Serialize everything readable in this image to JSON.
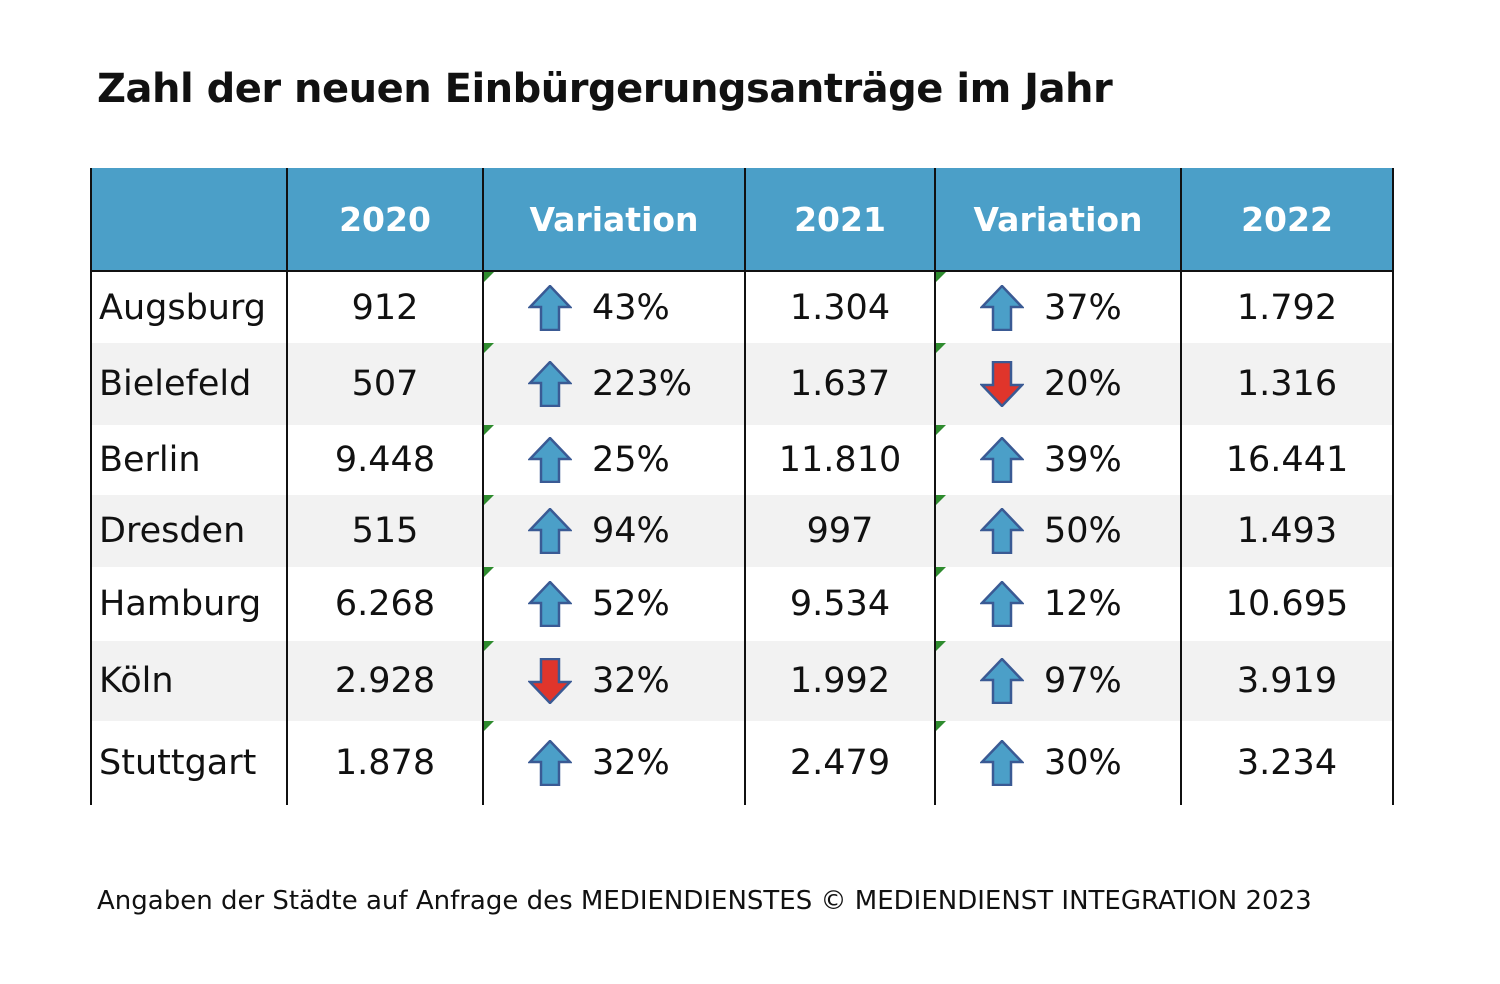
{
  "title": "Zahl der neuen Einbürgerungsanträge im Jahr",
  "footer": "Angaben der Städte auf Anfrage des MEDIENDIENSTES © MEDIENDIENST INTEGRATION 2023",
  "colors": {
    "header_bg": "#4b9fc8",
    "arrow_up": "#4b9fc8",
    "arrow_down": "#e0352b",
    "row_alt": "#f2f2f2"
  },
  "chart_data": {
    "type": "table",
    "title": "Zahl der neuen Einbürgerungsanträge im Jahr",
    "columns": [
      "",
      "2020",
      "Variation",
      "2021",
      "Variation",
      "2022"
    ],
    "rows": [
      {
        "city": "Augsburg",
        "y2020": "912",
        "var1": "43%",
        "dir1": "up",
        "y2021": "1.304",
        "var2": "37%",
        "dir2": "up",
        "y2022": "1.792"
      },
      {
        "city": "Bielefeld",
        "y2020": "507",
        "var1": "223%",
        "dir1": "up",
        "y2021": "1.637",
        "var2": "20%",
        "dir2": "down",
        "y2022": "1.316"
      },
      {
        "city": "Berlin",
        "y2020": "9.448",
        "var1": "25%",
        "dir1": "up",
        "y2021": "11.810",
        "var2": "39%",
        "dir2": "up",
        "y2022": "16.441"
      },
      {
        "city": "Dresden",
        "y2020": "515",
        "var1": "94%",
        "dir1": "up",
        "y2021": "997",
        "var2": "50%",
        "dir2": "up",
        "y2022": "1.493"
      },
      {
        "city": "Hamburg",
        "y2020": "6.268",
        "var1": "52%",
        "dir1": "up",
        "y2021": "9.534",
        "var2": "12%",
        "dir2": "up",
        "y2022": "10.695"
      },
      {
        "city": "Köln",
        "y2020": "2.928",
        "var1": "32%",
        "dir1": "down",
        "y2021": "1.992",
        "var2": "97%",
        "dir2": "up",
        "y2022": "3.919"
      },
      {
        "city": "Stuttgart",
        "y2020": "1.878",
        "var1": "32%",
        "dir1": "up",
        "y2021": "2.479",
        "var2": "30%",
        "dir2": "up",
        "y2022": "3.234"
      }
    ]
  }
}
